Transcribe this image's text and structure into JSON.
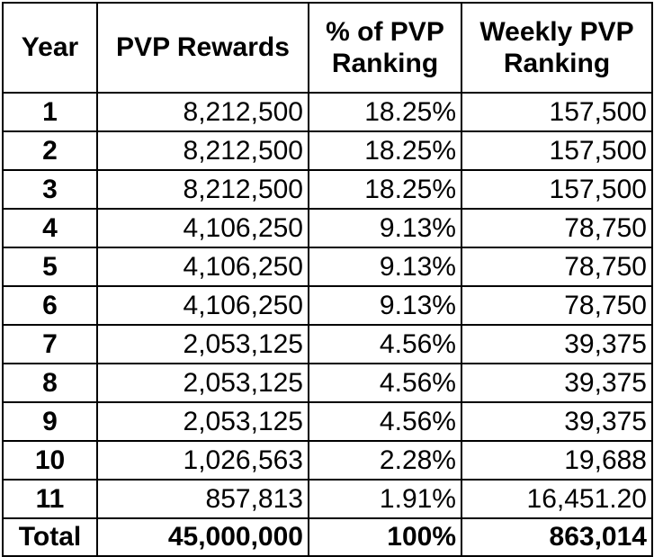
{
  "columns": [
    "Year",
    "PVP Rewards",
    "% of PVP Ranking",
    "Weekly PVP Ranking"
  ],
  "rows": [
    {
      "year": "1",
      "rewards": "8,212,500",
      "percent": "18.25%",
      "weekly": "157,500"
    },
    {
      "year": "2",
      "rewards": "8,212,500",
      "percent": "18.25%",
      "weekly": "157,500"
    },
    {
      "year": "3",
      "rewards": "8,212,500",
      "percent": "18.25%",
      "weekly": "157,500"
    },
    {
      "year": "4",
      "rewards": "4,106,250",
      "percent": "9.13%",
      "weekly": "78,750"
    },
    {
      "year": "5",
      "rewards": "4,106,250",
      "percent": "9.13%",
      "weekly": "78,750"
    },
    {
      "year": "6",
      "rewards": "4,106,250",
      "percent": "9.13%",
      "weekly": "78,750"
    },
    {
      "year": "7",
      "rewards": "2,053,125",
      "percent": "4.56%",
      "weekly": "39,375"
    },
    {
      "year": "8",
      "rewards": "2,053,125",
      "percent": "4.56%",
      "weekly": "39,375"
    },
    {
      "year": "9",
      "rewards": "2,053,125",
      "percent": "4.56%",
      "weekly": "39,375"
    },
    {
      "year": "10",
      "rewards": "1,026,563",
      "percent": "2.28%",
      "weekly": "19,688"
    },
    {
      "year": "11",
      "rewards": "857,813",
      "percent": "1.91%",
      "weekly": "16,451.20"
    }
  ],
  "total": {
    "label": "Total",
    "rewards": "45,000,000",
    "percent": "100%",
    "weekly": "863,014"
  }
}
